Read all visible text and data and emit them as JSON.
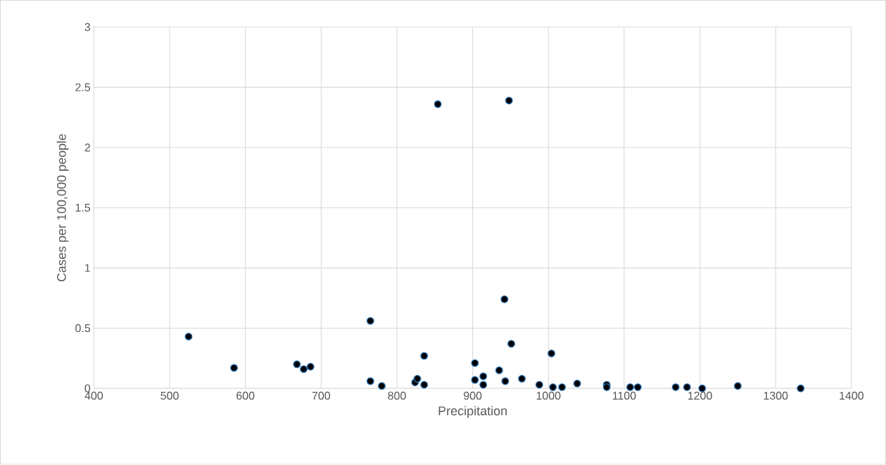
{
  "chart_data": {
    "type": "scatter",
    "xlabel": "Precipitation",
    "ylabel": "Cases per 100,000 people",
    "x": [
      525,
      585,
      668,
      677,
      686,
      765,
      765,
      780,
      824,
      827,
      836,
      836,
      854,
      903,
      903,
      914,
      914,
      935,
      942,
      943,
      948,
      951,
      965,
      988,
      1004,
      1006,
      1018,
      1038,
      1077,
      1077,
      1108,
      1118,
      1168,
      1183,
      1203,
      1250,
      1333
    ],
    "series": [
      {
        "color": "#000000",
        "values": [
          0.43,
          0.17,
          0.2,
          0.16,
          0.18,
          0.56,
          0.06,
          0.02,
          0.05,
          0.08,
          0.03,
          0.27,
          2.36,
          0.21,
          0.07,
          0.1,
          0.03,
          0.15,
          0.74,
          0.06,
          2.39,
          0.37,
          0.08,
          0.03,
          0.29,
          0.01,
          0.01,
          0.04,
          0.03,
          0.01,
          0.01,
          0.01,
          0.01,
          0.01,
          0,
          0.02,
          0
        ]
      }
    ],
    "xlim": [
      400,
      1400
    ],
    "ylim": [
      0,
      3
    ],
    "xticks": [
      400,
      500,
      600,
      700,
      800,
      900,
      1000,
      1100,
      1200,
      1300,
      1400
    ],
    "yticks": [
      0,
      0.5,
      1,
      1.5,
      2,
      2.5,
      3
    ],
    "grid": true,
    "marker": "circle"
  }
}
